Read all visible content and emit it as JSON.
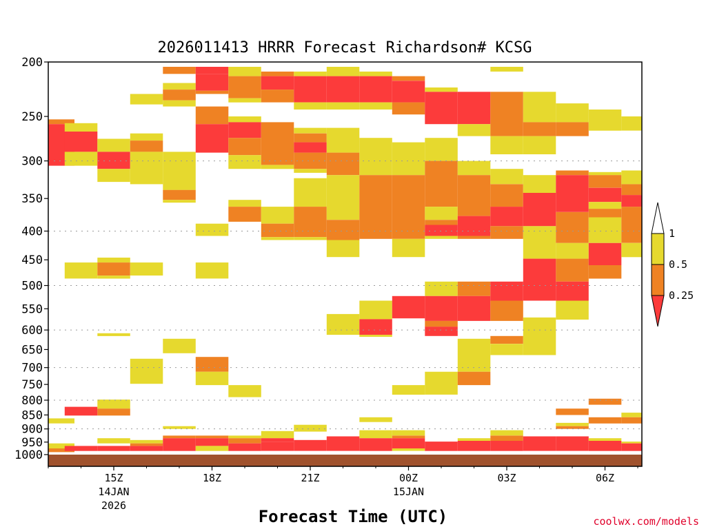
{
  "chart_data": {
    "type": "heatmap",
    "title": "2026011413 HRRR Forecast Richardson# KCSG",
    "xlabel": "Forecast Time (UTC)",
    "x_ticks": [
      {
        "label": "15Z",
        "sub": [
          "14JAN",
          "2026"
        ]
      },
      {
        "label": "18Z",
        "sub": []
      },
      {
        "label": "21Z",
        "sub": []
      },
      {
        "label": "00Z",
        "sub": [
          "15JAN"
        ]
      },
      {
        "label": "03Z",
        "sub": []
      },
      {
        "label": "06Z",
        "sub": []
      }
    ],
    "y_ticks": [
      "200",
      "250",
      "300",
      "350",
      "400",
      "450",
      "500",
      "550",
      "600",
      "650",
      "700",
      "750",
      "800",
      "850",
      "900",
      "950",
      "1000"
    ],
    "colorbar": {
      "labels": [
        "1",
        "0.5",
        "0.25"
      ],
      "bins": [
        {
          "range": "< 0.25",
          "color": "#fc3b3b"
        },
        {
          "range": "0.25 - 0.5",
          "color": "#ef8223"
        },
        {
          "range": "0.5 - 1",
          "color": "#e6d92e"
        },
        {
          "range": "> 1",
          "color": "#ffffff"
        }
      ]
    },
    "ground_color": "#a0522d",
    "cells": [
      {
        "t": 13.3,
        "p0": 253,
        "p1": 258,
        "c": "O"
      },
      {
        "t": 13.3,
        "p0": 258,
        "p1": 306,
        "c": "R"
      },
      {
        "t": 13.3,
        "p0": 862,
        "p1": 880,
        "c": "Y"
      },
      {
        "t": 13.3,
        "p0": 955,
        "p1": 975,
        "c": "Y"
      },
      {
        "t": 13.3,
        "p0": 975,
        "p1": 990,
        "c": "O"
      },
      {
        "t": 14,
        "p0": 257,
        "p1": 266,
        "c": "Y"
      },
      {
        "t": 14,
        "p0": 266,
        "p1": 289,
        "c": "R"
      },
      {
        "t": 14,
        "p0": 289,
        "p1": 306,
        "c": "Y"
      },
      {
        "t": 14,
        "p0": 455,
        "p1": 486,
        "c": "Y"
      },
      {
        "t": 14,
        "p0": 822,
        "p1": 852,
        "c": "R"
      },
      {
        "t": 14,
        "p0": 965,
        "p1": 985,
        "c": "R"
      },
      {
        "t": 15,
        "p0": 274,
        "p1": 289,
        "c": "Y"
      },
      {
        "t": 15,
        "p0": 289,
        "p1": 310,
        "c": "R"
      },
      {
        "t": 15,
        "p0": 310,
        "p1": 327,
        "c": "Y"
      },
      {
        "t": 15,
        "p0": 446,
        "p1": 455,
        "c": "Y"
      },
      {
        "t": 15,
        "p0": 455,
        "p1": 480,
        "c": "O"
      },
      {
        "t": 15,
        "p0": 480,
        "p1": 486,
        "c": "Y"
      },
      {
        "t": 15,
        "p0": 608,
        "p1": 615,
        "c": "Y"
      },
      {
        "t": 15,
        "p0": 798,
        "p1": 828,
        "c": "Y"
      },
      {
        "t": 15,
        "p0": 828,
        "p1": 852,
        "c": "O"
      },
      {
        "t": 15,
        "p0": 935,
        "p1": 955,
        "c": "Y"
      },
      {
        "t": 15,
        "p0": 965,
        "p1": 985,
        "c": "R"
      },
      {
        "t": 16,
        "p0": 228,
        "p1": 238,
        "c": "Y"
      },
      {
        "t": 16,
        "p0": 268,
        "p1": 276,
        "c": "Y"
      },
      {
        "t": 16,
        "p0": 276,
        "p1": 289,
        "c": "O"
      },
      {
        "t": 16,
        "p0": 289,
        "p1": 330,
        "c": "Y"
      },
      {
        "t": 16,
        "p0": 455,
        "p1": 480,
        "c": "Y"
      },
      {
        "t": 16,
        "p0": 675,
        "p1": 748,
        "c": "Y"
      },
      {
        "t": 16,
        "p0": 942,
        "p1": 955,
        "c": "Y"
      },
      {
        "t": 16,
        "p0": 955,
        "p1": 965,
        "c": "O"
      },
      {
        "t": 16,
        "p0": 965,
        "p1": 985,
        "c": "R"
      },
      {
        "t": 17,
        "p0": 204,
        "p1": 210,
        "c": "O"
      },
      {
        "t": 17,
        "p0": 218,
        "p1": 224,
        "c": "Y"
      },
      {
        "t": 17,
        "p0": 224,
        "p1": 234,
        "c": "O"
      },
      {
        "t": 17,
        "p0": 234,
        "p1": 240,
        "c": "Y"
      },
      {
        "t": 17,
        "p0": 289,
        "p1": 338,
        "c": "Y"
      },
      {
        "t": 17,
        "p0": 338,
        "p1": 352,
        "c": "O"
      },
      {
        "t": 17,
        "p0": 352,
        "p1": 356,
        "c": "Y"
      },
      {
        "t": 17,
        "p0": 622,
        "p1": 660,
        "c": "Y"
      },
      {
        "t": 17,
        "p0": 890,
        "p1": 900,
        "c": "Y"
      },
      {
        "t": 17,
        "p0": 925,
        "p1": 935,
        "c": "O"
      },
      {
        "t": 17,
        "p0": 935,
        "p1": 985,
        "c": "R"
      },
      {
        "t": 18,
        "p0": 204,
        "p1": 210,
        "c": "R"
      },
      {
        "t": 18,
        "p0": 210,
        "p1": 225,
        "c": "R"
      },
      {
        "t": 18,
        "p0": 225,
        "p1": 228,
        "c": "O"
      },
      {
        "t": 18,
        "p0": 240,
        "p1": 258,
        "c": "O"
      },
      {
        "t": 18,
        "p0": 258,
        "p1": 290,
        "c": "R"
      },
      {
        "t": 18,
        "p0": 388,
        "p1": 408,
        "c": "Y"
      },
      {
        "t": 18,
        "p0": 455,
        "p1": 486,
        "c": "Y"
      },
      {
        "t": 18,
        "p0": 670,
        "p1": 712,
        "c": "O"
      },
      {
        "t": 18,
        "p0": 712,
        "p1": 752,
        "c": "Y"
      },
      {
        "t": 18,
        "p0": 925,
        "p1": 935,
        "c": "O"
      },
      {
        "t": 18,
        "p0": 935,
        "p1": 965,
        "c": "R"
      },
      {
        "t": 18,
        "p0": 965,
        "p1": 985,
        "c": "Y"
      },
      {
        "t": 19,
        "p0": 204,
        "p1": 212,
        "c": "Y"
      },
      {
        "t": 19,
        "p0": 212,
        "p1": 232,
        "c": "O"
      },
      {
        "t": 19,
        "p0": 232,
        "p1": 236,
        "c": "Y"
      },
      {
        "t": 19,
        "p0": 250,
        "p1": 256,
        "c": "Y"
      },
      {
        "t": 19,
        "p0": 256,
        "p1": 273,
        "c": "R"
      },
      {
        "t": 19,
        "p0": 273,
        "p1": 293,
        "c": "O"
      },
      {
        "t": 19,
        "p0": 293,
        "p1": 310,
        "c": "Y"
      },
      {
        "t": 19,
        "p0": 352,
        "p1": 362,
        "c": "Y"
      },
      {
        "t": 19,
        "p0": 362,
        "p1": 385,
        "c": "O"
      },
      {
        "t": 19,
        "p0": 752,
        "p1": 790,
        "c": "Y"
      },
      {
        "t": 19,
        "p0": 925,
        "p1": 935,
        "c": "Y"
      },
      {
        "t": 19,
        "p0": 935,
        "p1": 955,
        "c": "O"
      },
      {
        "t": 19,
        "p0": 955,
        "p1": 985,
        "c": "R"
      },
      {
        "t": 20,
        "p0": 208,
        "p1": 212,
        "c": "O"
      },
      {
        "t": 20,
        "p0": 212,
        "p1": 224,
        "c": "R"
      },
      {
        "t": 20,
        "p0": 224,
        "p1": 236,
        "c": "O"
      },
      {
        "t": 20,
        "p0": 256,
        "p1": 305,
        "c": "O"
      },
      {
        "t": 20,
        "p0": 305,
        "p1": 310,
        "c": "Y"
      },
      {
        "t": 20,
        "p0": 362,
        "p1": 388,
        "c": "Y"
      },
      {
        "t": 20,
        "p0": 388,
        "p1": 410,
        "c": "O"
      },
      {
        "t": 20,
        "p0": 410,
        "p1": 415,
        "c": "Y"
      },
      {
        "t": 20,
        "p0": 908,
        "p1": 935,
        "c": "Y"
      },
      {
        "t": 20,
        "p0": 935,
        "p1": 950,
        "c": "R"
      },
      {
        "t": 20,
        "p0": 950,
        "p1": 985,
        "c": "R"
      },
      {
        "t": 21,
        "p0": 208,
        "p1": 212,
        "c": "Y"
      },
      {
        "t": 21,
        "p0": 212,
        "p1": 236,
        "c": "R"
      },
      {
        "t": 21,
        "p0": 236,
        "p1": 243,
        "c": "Y"
      },
      {
        "t": 21,
        "p0": 262,
        "p1": 268,
        "c": "Y"
      },
      {
        "t": 21,
        "p0": 268,
        "p1": 278,
        "c": "O"
      },
      {
        "t": 21,
        "p0": 278,
        "p1": 290,
        "c": "R"
      },
      {
        "t": 21,
        "p0": 290,
        "p1": 310,
        "c": "O"
      },
      {
        "t": 21,
        "p0": 310,
        "p1": 315,
        "c": "Y"
      },
      {
        "t": 21,
        "p0": 322,
        "p1": 362,
        "c": "Y"
      },
      {
        "t": 21,
        "p0": 362,
        "p1": 410,
        "c": "O"
      },
      {
        "t": 21,
        "p0": 410,
        "p1": 415,
        "c": "Y"
      },
      {
        "t": 21,
        "p0": 885,
        "p1": 910,
        "c": "Y"
      },
      {
        "t": 21,
        "p0": 942,
        "p1": 985,
        "c": "R"
      },
      {
        "t": 22,
        "p0": 204,
        "p1": 212,
        "c": "Y"
      },
      {
        "t": 22,
        "p0": 212,
        "p1": 236,
        "c": "R"
      },
      {
        "t": 22,
        "p0": 236,
        "p1": 243,
        "c": "Y"
      },
      {
        "t": 22,
        "p0": 262,
        "p1": 290,
        "c": "Y"
      },
      {
        "t": 22,
        "p0": 290,
        "p1": 318,
        "c": "O"
      },
      {
        "t": 22,
        "p0": 318,
        "p1": 382,
        "c": "Y"
      },
      {
        "t": 22,
        "p0": 382,
        "p1": 415,
        "c": "O"
      },
      {
        "t": 22,
        "p0": 415,
        "p1": 445,
        "c": "Y"
      },
      {
        "t": 22,
        "p0": 562,
        "p1": 612,
        "c": "Y"
      },
      {
        "t": 22,
        "p0": 928,
        "p1": 985,
        "c": "R"
      },
      {
        "t": 23,
        "p0": 208,
        "p1": 212,
        "c": "Y"
      },
      {
        "t": 23,
        "p0": 212,
        "p1": 236,
        "c": "R"
      },
      {
        "t": 23,
        "p0": 236,
        "p1": 243,
        "c": "Y"
      },
      {
        "t": 23,
        "p0": 273,
        "p1": 318,
        "c": "Y"
      },
      {
        "t": 23,
        "p0": 318,
        "p1": 413,
        "c": "O"
      },
      {
        "t": 23,
        "p0": 532,
        "p1": 574,
        "c": "Y"
      },
      {
        "t": 23,
        "p0": 574,
        "p1": 612,
        "c": "R"
      },
      {
        "t": 23,
        "p0": 612,
        "p1": 617,
        "c": "Y"
      },
      {
        "t": 23,
        "p0": 858,
        "p1": 875,
        "c": "Y"
      },
      {
        "t": 23,
        "p0": 905,
        "p1": 935,
        "c": "Y"
      },
      {
        "t": 23,
        "p0": 935,
        "p1": 985,
        "c": "R"
      },
      {
        "t": 24,
        "p0": 212,
        "p1": 216,
        "c": "O"
      },
      {
        "t": 24,
        "p0": 216,
        "p1": 236,
        "c": "R"
      },
      {
        "t": 24,
        "p0": 236,
        "p1": 248,
        "c": "O"
      },
      {
        "t": 24,
        "p0": 278,
        "p1": 318,
        "c": "Y"
      },
      {
        "t": 24,
        "p0": 318,
        "p1": 413,
        "c": "O"
      },
      {
        "t": 24,
        "p0": 413,
        "p1": 445,
        "c": "Y"
      },
      {
        "t": 24,
        "p0": 522,
        "p1": 572,
        "c": "R"
      },
      {
        "t": 24,
        "p0": 752,
        "p1": 782,
        "c": "Y"
      },
      {
        "t": 24,
        "p0": 905,
        "p1": 925,
        "c": "Y"
      },
      {
        "t": 24,
        "p0": 925,
        "p1": 935,
        "c": "O"
      },
      {
        "t": 24,
        "p0": 935,
        "p1": 975,
        "c": "R"
      },
      {
        "t": 24,
        "p0": 975,
        "p1": 985,
        "c": "Y"
      },
      {
        "t": 25,
        "p0": 222,
        "p1": 226,
        "c": "Y"
      },
      {
        "t": 25,
        "p0": 226,
        "p1": 258,
        "c": "R"
      },
      {
        "t": 25,
        "p0": 273,
        "p1": 300,
        "c": "Y"
      },
      {
        "t": 25,
        "p0": 300,
        "p1": 362,
        "c": "O"
      },
      {
        "t": 25,
        "p0": 362,
        "p1": 382,
        "c": "Y"
      },
      {
        "t": 25,
        "p0": 382,
        "p1": 390,
        "c": "O"
      },
      {
        "t": 25,
        "p0": 390,
        "p1": 408,
        "c": "R"
      },
      {
        "t": 25,
        "p0": 408,
        "p1": 413,
        "c": "Y"
      },
      {
        "t": 25,
        "p0": 492,
        "p1": 522,
        "c": "Y"
      },
      {
        "t": 25,
        "p0": 522,
        "p1": 578,
        "c": "R"
      },
      {
        "t": 25,
        "p0": 578,
        "p1": 592,
        "c": "O"
      },
      {
        "t": 25,
        "p0": 592,
        "p1": 615,
        "c": "R"
      },
      {
        "t": 25,
        "p0": 712,
        "p1": 782,
        "c": "Y"
      },
      {
        "t": 25,
        "p0": 948,
        "p1": 985,
        "c": "R"
      },
      {
        "t": 26,
        "p0": 226,
        "p1": 258,
        "c": "R"
      },
      {
        "t": 26,
        "p0": 258,
        "p1": 271,
        "c": "Y"
      },
      {
        "t": 26,
        "p0": 300,
        "p1": 318,
        "c": "Y"
      },
      {
        "t": 26,
        "p0": 318,
        "p1": 376,
        "c": "O"
      },
      {
        "t": 26,
        "p0": 376,
        "p1": 408,
        "c": "R"
      },
      {
        "t": 26,
        "p0": 408,
        "p1": 413,
        "c": "O"
      },
      {
        "t": 26,
        "p0": 492,
        "p1": 522,
        "c": "O"
      },
      {
        "t": 26,
        "p0": 522,
        "p1": 578,
        "c": "R"
      },
      {
        "t": 26,
        "p0": 622,
        "p1": 712,
        "c": "Y"
      },
      {
        "t": 26,
        "p0": 712,
        "p1": 752,
        "c": "O"
      },
      {
        "t": 26,
        "p0": 935,
        "p1": 945,
        "c": "Y"
      },
      {
        "t": 26,
        "p0": 945,
        "p1": 985,
        "c": "R"
      },
      {
        "t": 27,
        "p0": 204,
        "p1": 208,
        "c": "Y"
      },
      {
        "t": 27,
        "p0": 226,
        "p1": 271,
        "c": "O"
      },
      {
        "t": 27,
        "p0": 271,
        "p1": 292,
        "c": "Y"
      },
      {
        "t": 27,
        "p0": 310,
        "p1": 330,
        "c": "Y"
      },
      {
        "t": 27,
        "p0": 330,
        "p1": 362,
        "c": "O"
      },
      {
        "t": 27,
        "p0": 362,
        "p1": 392,
        "c": "R"
      },
      {
        "t": 27,
        "p0": 392,
        "p1": 413,
        "c": "O"
      },
      {
        "t": 27,
        "p0": 492,
        "p1": 532,
        "c": "R"
      },
      {
        "t": 27,
        "p0": 532,
        "p1": 578,
        "c": "O"
      },
      {
        "t": 27,
        "p0": 615,
        "p1": 635,
        "c": "O"
      },
      {
        "t": 27,
        "p0": 635,
        "p1": 665,
        "c": "Y"
      },
      {
        "t": 27,
        "p0": 905,
        "p1": 925,
        "c": "Y"
      },
      {
        "t": 27,
        "p0": 925,
        "p1": 945,
        "c": "O"
      },
      {
        "t": 27,
        "p0": 945,
        "p1": 985,
        "c": "R"
      },
      {
        "t": 28,
        "p0": 226,
        "p1": 256,
        "c": "Y"
      },
      {
        "t": 28,
        "p0": 256,
        "p1": 271,
        "c": "O"
      },
      {
        "t": 28,
        "p0": 271,
        "p1": 292,
        "c": "Y"
      },
      {
        "t": 28,
        "p0": 318,
        "p1": 342,
        "c": "Y"
      },
      {
        "t": 28,
        "p0": 342,
        "p1": 392,
        "c": "R"
      },
      {
        "t": 28,
        "p0": 392,
        "p1": 448,
        "c": "Y"
      },
      {
        "t": 28,
        "p0": 448,
        "p1": 532,
        "c": "R"
      },
      {
        "t": 28,
        "p0": 570,
        "p1": 665,
        "c": "Y"
      },
      {
        "t": 28,
        "p0": 928,
        "p1": 985,
        "c": "R"
      },
      {
        "t": 29,
        "p0": 237,
        "p1": 256,
        "c": "Y"
      },
      {
        "t": 29,
        "p0": 256,
        "p1": 271,
        "c": "O"
      },
      {
        "t": 29,
        "p0": 312,
        "p1": 318,
        "c": "O"
      },
      {
        "t": 29,
        "p0": 318,
        "p1": 370,
        "c": "R"
      },
      {
        "t": 29,
        "p0": 370,
        "p1": 420,
        "c": "O"
      },
      {
        "t": 29,
        "p0": 420,
        "p1": 448,
        "c": "Y"
      },
      {
        "t": 29,
        "p0": 448,
        "p1": 492,
        "c": "O"
      },
      {
        "t": 29,
        "p0": 492,
        "p1": 532,
        "c": "R"
      },
      {
        "t": 29,
        "p0": 532,
        "p1": 575,
        "c": "Y"
      },
      {
        "t": 29,
        "p0": 828,
        "p1": 850,
        "c": "O"
      },
      {
        "t": 29,
        "p0": 878,
        "p1": 890,
        "c": "Y"
      },
      {
        "t": 29,
        "p0": 890,
        "p1": 900,
        "c": "O"
      },
      {
        "t": 29,
        "p0": 928,
        "p1": 985,
        "c": "R"
      },
      {
        "t": 30,
        "p0": 243,
        "p1": 265,
        "c": "Y"
      },
      {
        "t": 30,
        "p0": 314,
        "p1": 318,
        "c": "Y"
      },
      {
        "t": 30,
        "p0": 318,
        "p1": 335,
        "c": "O"
      },
      {
        "t": 30,
        "p0": 335,
        "p1": 355,
        "c": "R"
      },
      {
        "t": 30,
        "p0": 355,
        "p1": 365,
        "c": "Y"
      },
      {
        "t": 30,
        "p0": 365,
        "p1": 378,
        "c": "O"
      },
      {
        "t": 30,
        "p0": 378,
        "p1": 420,
        "c": "Y"
      },
      {
        "t": 30,
        "p0": 420,
        "p1": 460,
        "c": "R"
      },
      {
        "t": 30,
        "p0": 460,
        "p1": 486,
        "c": "O"
      },
      {
        "t": 30,
        "p0": 795,
        "p1": 815,
        "c": "O"
      },
      {
        "t": 30,
        "p0": 858,
        "p1": 880,
        "c": "O"
      },
      {
        "t": 30,
        "p0": 935,
        "p1": 945,
        "c": "Y"
      },
      {
        "t": 30,
        "p0": 945,
        "p1": 985,
        "c": "R"
      },
      {
        "t": 31,
        "p0": 250,
        "p1": 265,
        "c": "Y"
      },
      {
        "t": 31,
        "p0": 312,
        "p1": 330,
        "c": "Y"
      },
      {
        "t": 31,
        "p0": 330,
        "p1": 345,
        "c": "O"
      },
      {
        "t": 31,
        "p0": 345,
        "p1": 362,
        "c": "R"
      },
      {
        "t": 31,
        "p0": 362,
        "p1": 420,
        "c": "O"
      },
      {
        "t": 31,
        "p0": 420,
        "p1": 445,
        "c": "Y"
      },
      {
        "t": 31,
        "p0": 842,
        "p1": 858,
        "c": "Y"
      },
      {
        "t": 31,
        "p0": 858,
        "p1": 880,
        "c": "O"
      },
      {
        "t": 31,
        "p0": 948,
        "p1": 955,
        "c": "Y"
      },
      {
        "t": 31,
        "p0": 955,
        "p1": 985,
        "c": "R"
      }
    ]
  },
  "credit": "coolwx.com/models"
}
